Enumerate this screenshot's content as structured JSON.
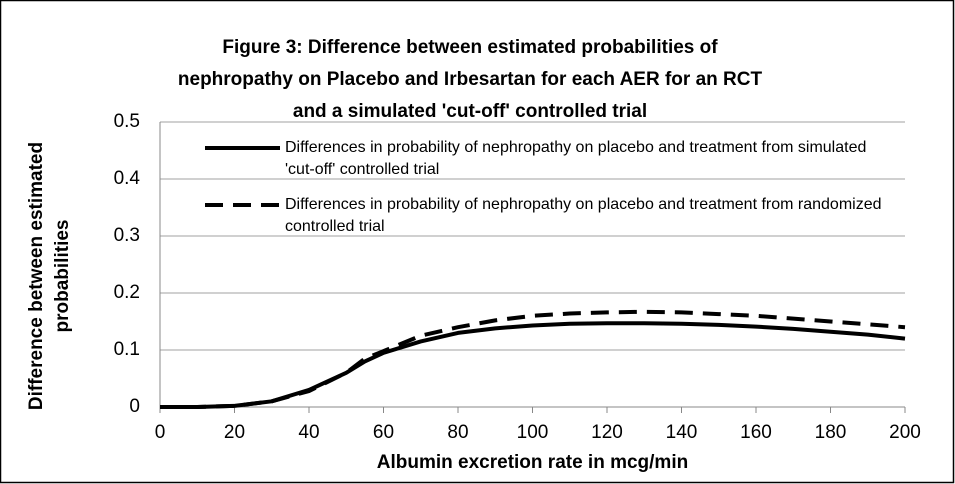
{
  "chart_data": {
    "type": "line",
    "title": [
      "Figure 3: Difference between estimated probabilities of",
      "nephropathy on Placebo and Irbesartan for each AER for an RCT",
      "and a simulated 'cut-off' controlled trial"
    ],
    "xlabel": "Albumin excretion rate in mcg/min",
    "ylabel": "Difference between estimated probabilities",
    "x": [
      0,
      10,
      20,
      30,
      40,
      50,
      55,
      60,
      70,
      80,
      90,
      100,
      110,
      120,
      130,
      140,
      150,
      160,
      170,
      180,
      190,
      200
    ],
    "series": [
      {
        "name": "Differences in probability of nephropathy on placebo and treatment from simulated 'cut-off' controlled trial",
        "color": "#000000",
        "dash": false,
        "values": [
          0,
          0,
          0.002,
          0.01,
          0.03,
          0.06,
          0.08,
          0.095,
          0.115,
          0.13,
          0.138,
          0.143,
          0.146,
          0.147,
          0.147,
          0.146,
          0.144,
          0.141,
          0.137,
          0.132,
          0.127,
          0.12
        ]
      },
      {
        "name": "Differences in probability of nephropathy on placebo and treatment from randomized controlled trial",
        "color": "#000000",
        "dash": true,
        "values": [
          0,
          0,
          0.002,
          0.01,
          0.028,
          0.06,
          0.085,
          0.098,
          0.125,
          0.14,
          0.152,
          0.16,
          0.164,
          0.166,
          0.167,
          0.166,
          0.163,
          0.16,
          0.155,
          0.15,
          0.145,
          0.14
        ]
      }
    ],
    "xlim": [
      0,
      200
    ],
    "xticks": [
      0,
      20,
      40,
      60,
      80,
      100,
      120,
      140,
      160,
      180,
      200
    ],
    "ylim": [
      0,
      0.5
    ],
    "yticks": [
      0,
      0.1,
      0.2,
      0.3,
      0.4,
      0.5
    ],
    "grid": true
  }
}
